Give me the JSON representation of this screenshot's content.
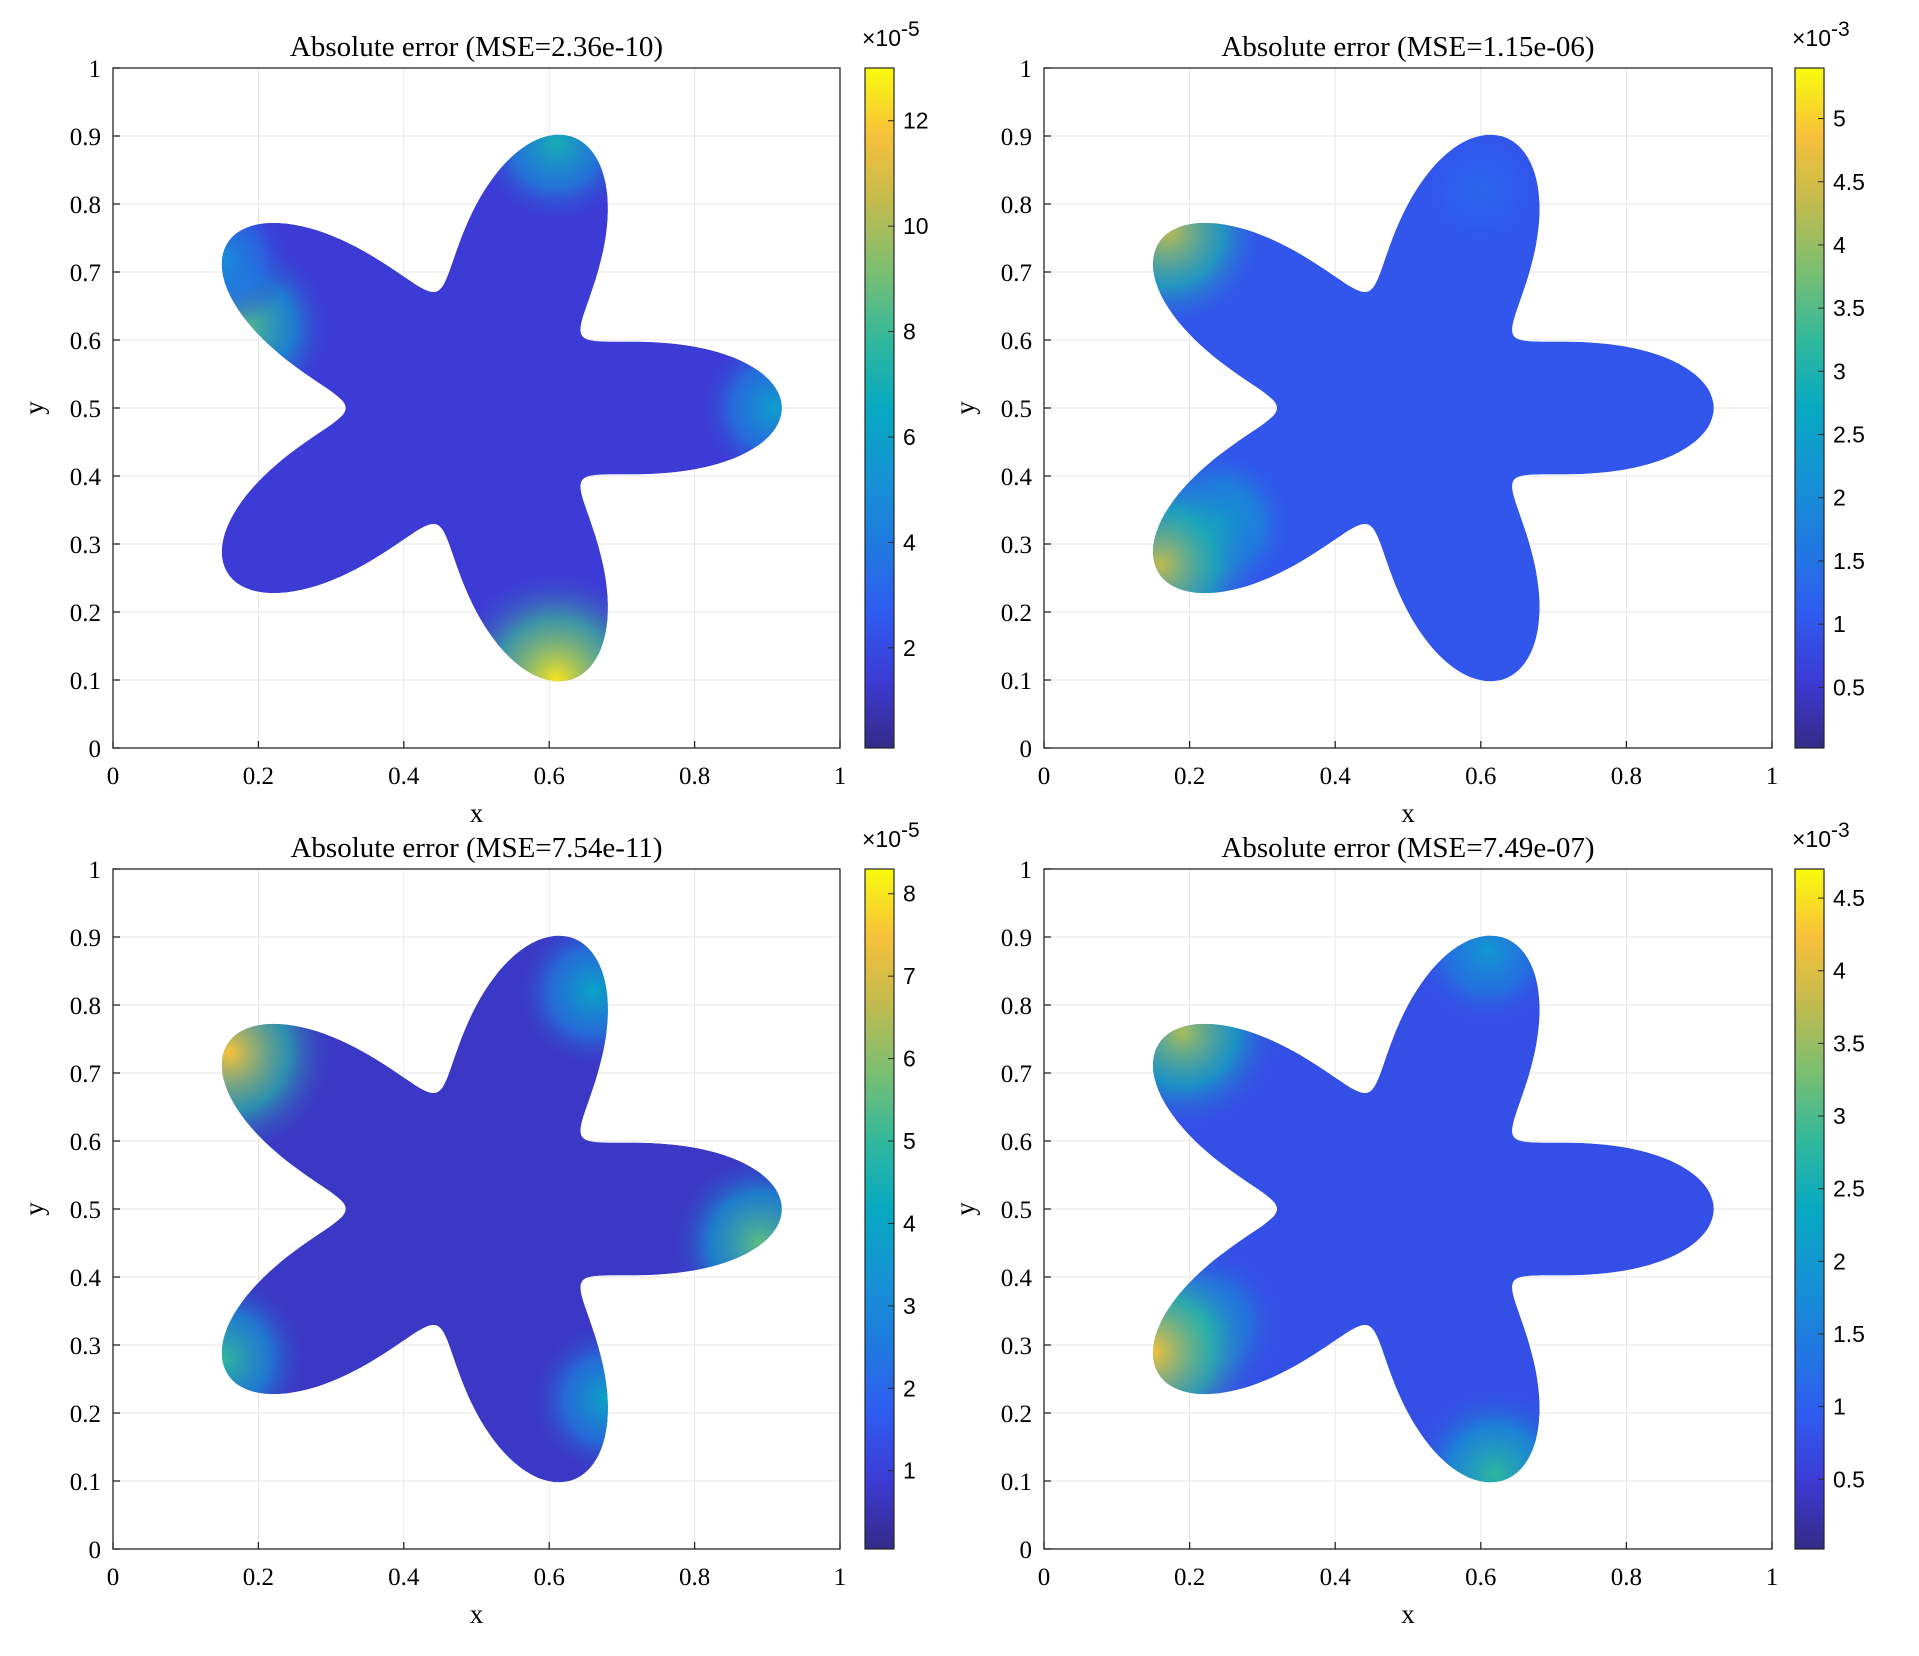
{
  "chart_data": [
    {
      "type": "heatmap",
      "title": "Absolute error (MSE=2.36e-10)",
      "xlabel": "x",
      "ylabel": "y",
      "xlim": [
        0,
        1
      ],
      "ylim": [
        0,
        1
      ],
      "xticks": [
        "0",
        "0.2",
        "0.4",
        "0.6",
        "0.8",
        "1"
      ],
      "yticks": [
        "0",
        "0.1",
        "0.2",
        "0.3",
        "0.4",
        "0.5",
        "0.6",
        "0.7",
        "0.8",
        "0.9",
        "1"
      ],
      "grid": true,
      "colorbar": {
        "multiplier": "×10",
        "exponent": "-5",
        "range": [
          0.1,
          13
        ],
        "ticks": [
          2,
          4,
          6,
          8,
          10,
          12
        ],
        "tick_labels": [
          "2",
          "4",
          "6",
          "8",
          "10",
          "12"
        ]
      },
      "hotspots": [
        {
          "x": 0.61,
          "y": 0.1,
          "value": 12.5
        },
        {
          "x": 0.61,
          "y": 0.89,
          "value": 7
        },
        {
          "x": 0.18,
          "y": 0.62,
          "value": 8.5
        },
        {
          "x": 0.91,
          "y": 0.5,
          "value": 6
        },
        {
          "x": 0.15,
          "y": 0.72,
          "value": 5
        }
      ]
    },
    {
      "type": "heatmap",
      "title": "Absolute error (MSE=1.15e-06)",
      "xlabel": "x",
      "ylabel": "y",
      "xlim": [
        0,
        1
      ],
      "ylim": [
        0,
        1
      ],
      "xticks": [
        "0",
        "0.2",
        "0.4",
        "0.6",
        "0.8",
        "1"
      ],
      "yticks": [
        "0",
        "0.1",
        "0.2",
        "0.3",
        "0.4",
        "0.5",
        "0.6",
        "0.7",
        "0.8",
        "0.9",
        "1"
      ],
      "grid": true,
      "colorbar": {
        "multiplier": "×10",
        "exponent": "-3",
        "range": [
          0.02,
          5.4
        ],
        "ticks": [
          0.5,
          1,
          1.5,
          2,
          2.5,
          3,
          3.5,
          4,
          4.5,
          5
        ],
        "tick_labels": [
          "0.5",
          "1",
          "1.5",
          "2",
          "2.5",
          "3",
          "3.5",
          "4",
          "4.5",
          "5"
        ]
      },
      "hotspots": [
        {
          "x": 0.24,
          "y": 0.33,
          "value": 2.6
        },
        {
          "x": 0.16,
          "y": 0.27,
          "value": 4.3
        },
        {
          "x": 0.17,
          "y": 0.76,
          "value": 4.3
        },
        {
          "x": 0.6,
          "y": 0.82,
          "value": 1.3
        }
      ]
    },
    {
      "type": "heatmap",
      "title": "Absolute error (MSE=7.54e-11)",
      "xlabel": "x",
      "ylabel": "y",
      "xlim": [
        0,
        1
      ],
      "ylim": [
        0,
        1
      ],
      "xticks": [
        "0",
        "0.2",
        "0.4",
        "0.6",
        "0.8",
        "1"
      ],
      "yticks": [
        "0",
        "0.1",
        "0.2",
        "0.3",
        "0.4",
        "0.5",
        "0.6",
        "0.7",
        "0.8",
        "0.9",
        "1"
      ],
      "grid": true,
      "colorbar": {
        "multiplier": "×10",
        "exponent": "-5",
        "range": [
          0.05,
          8.3
        ],
        "ticks": [
          1,
          2,
          3,
          4,
          5,
          6,
          7,
          8
        ],
        "tick_labels": [
          "1",
          "2",
          "3",
          "4",
          "5",
          "6",
          "7",
          "8"
        ]
      },
      "hotspots": [
        {
          "x": 0.16,
          "y": 0.73,
          "value": 7.5
        },
        {
          "x": 0.89,
          "y": 0.45,
          "value": 5.5
        },
        {
          "x": 0.15,
          "y": 0.28,
          "value": 5
        },
        {
          "x": 0.68,
          "y": 0.22,
          "value": 4
        },
        {
          "x": 0.66,
          "y": 0.82,
          "value": 4
        }
      ]
    },
    {
      "type": "heatmap",
      "title": "Absolute error (MSE=7.49e-07)",
      "xlabel": "x",
      "ylabel": "y",
      "xlim": [
        0,
        1
      ],
      "ylim": [
        0,
        1
      ],
      "xticks": [
        "0",
        "0.2",
        "0.4",
        "0.6",
        "0.8",
        "1"
      ],
      "yticks": [
        "0",
        "0.1",
        "0.2",
        "0.3",
        "0.4",
        "0.5",
        "0.6",
        "0.7",
        "0.8",
        "0.9",
        "1"
      ],
      "grid": true,
      "colorbar": {
        "multiplier": "×10",
        "exponent": "-3",
        "range": [
          0.02,
          4.7
        ],
        "ticks": [
          0.5,
          1,
          1.5,
          2,
          2.5,
          3,
          3.5,
          4,
          4.5
        ],
        "tick_labels": [
          "0.5",
          "1",
          "1.5",
          "2",
          "2.5",
          "3",
          "3.5",
          "4",
          "4.5"
        ]
      },
      "hotspots": [
        {
          "x": 0.22,
          "y": 0.33,
          "value": 2.2
        },
        {
          "x": 0.15,
          "y": 0.29,
          "value": 4.2
        },
        {
          "x": 0.62,
          "y": 0.11,
          "value": 2.8
        },
        {
          "x": 0.19,
          "y": 0.76,
          "value": 3.6
        },
        {
          "x": 0.61,
          "y": 0.88,
          "value": 2
        }
      ]
    }
  ]
}
